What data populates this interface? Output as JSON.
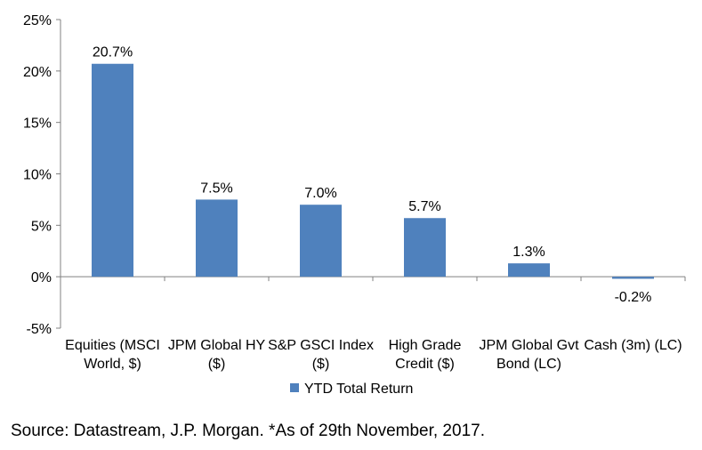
{
  "chart_data": {
    "type": "bar",
    "categories": [
      [
        "Equities (MSCI",
        "World, $)"
      ],
      [
        "JPM Global HY",
        "($)"
      ],
      [
        "S&P GSCI Index",
        "($)"
      ],
      [
        "High Grade",
        "Credit ($)"
      ],
      [
        "JPM Global Gvt",
        "Bond (LC)"
      ],
      [
        "Cash (3m) (LC)"
      ]
    ],
    "series": [
      {
        "name": "YTD Total Return",
        "values": [
          20.7,
          7.5,
          7.0,
          5.7,
          1.3,
          -0.2
        ]
      }
    ],
    "data_labels": [
      "20.7%",
      "7.5%",
      "7.0%",
      "5.7%",
      "1.3%",
      "-0.2%"
    ],
    "yticks": [
      25,
      20,
      15,
      10,
      5,
      0,
      -5
    ],
    "ytick_labels": [
      "25%",
      "20%",
      "15%",
      "10%",
      "5%",
      "0%",
      "-5%"
    ],
    "ylim": [
      -5,
      25
    ],
    "grid": false,
    "legend_position": "bottom",
    "colors": {
      "bar": "#4f81bd",
      "axis": "#808080"
    }
  },
  "source_note": "Source: Datastream, J.P. Morgan. *As of 29th November, 2017."
}
